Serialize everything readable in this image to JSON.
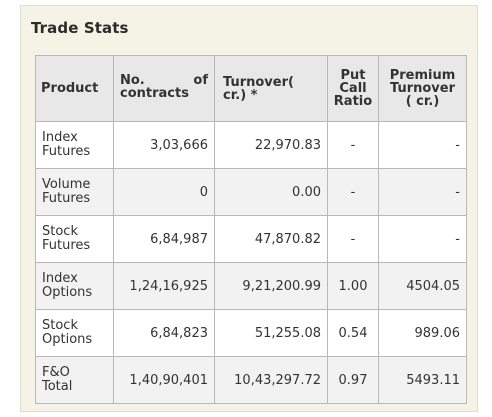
{
  "panel": {
    "title": "Trade Stats"
  },
  "table": {
    "headers": {
      "product": "Product",
      "contracts_a": "No.",
      "contracts_b": "of",
      "contracts_c": "contracts",
      "turnover_a": "Turnover(",
      "turnover_b": "cr.) *",
      "pcr_a": "Put",
      "pcr_b": "Call",
      "pcr_c": "Ratio",
      "premium_a": "Premium",
      "premium_b": "Turnover",
      "premium_c": "( cr.)"
    },
    "rows": [
      {
        "product_a": "Index",
        "product_b": "Futures",
        "contracts": "3,03,666",
        "turnover": "22,970.83",
        "pcr": "-",
        "premium": "-"
      },
      {
        "product_a": "Volume",
        "product_b": "Futures",
        "contracts": "0",
        "turnover": "0.00",
        "pcr": "-",
        "premium": "-"
      },
      {
        "product_a": "Stock",
        "product_b": "Futures",
        "contracts": "6,84,987",
        "turnover": "47,870.82",
        "pcr": "-",
        "premium": "-"
      },
      {
        "product_a": "Index",
        "product_b": "Options",
        "contracts": "1,24,16,925",
        "turnover": "9,21,200.99",
        "pcr": "1.00",
        "premium": "4504.05"
      },
      {
        "product_a": "Stock",
        "product_b": "Options",
        "contracts": "6,84,823",
        "turnover": "51,255.08",
        "pcr": "0.54",
        "premium": "989.06"
      },
      {
        "product_a": "F&O",
        "product_b": "Total",
        "contracts": "1,40,90,401",
        "turnover": "10,43,297.72",
        "pcr": "0.97",
        "premium": "5493.11"
      }
    ]
  },
  "colors": {
    "panel_bg": "#f5f3e6",
    "header_bg": "#e8e8e8",
    "row_alt_bg": "#f2f2f2",
    "border": "#b8b8b8"
  }
}
